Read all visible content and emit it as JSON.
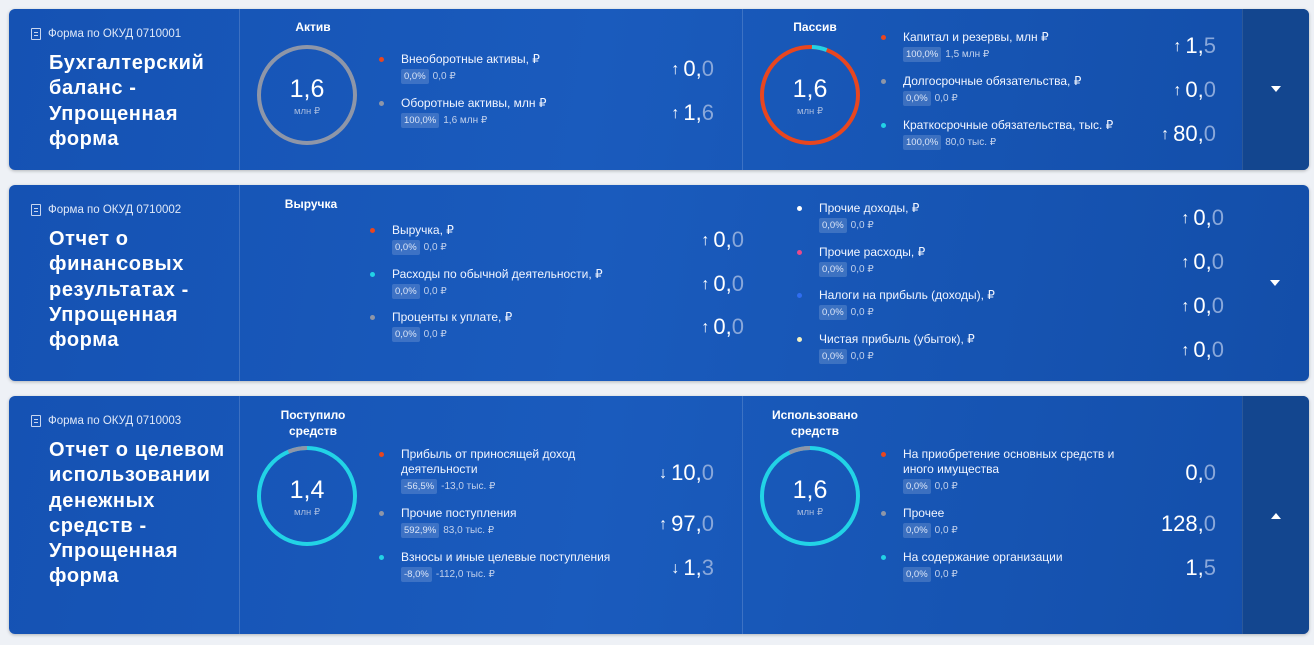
{
  "cards": [
    {
      "form_code": "Форма по ОКУД 0710001",
      "title": "Бухгалтерский баланс - Упрощенная форма",
      "sections": [
        {
          "title": "Актив",
          "ring": {
            "int": "1,6",
            "unit": "млн ₽",
            "color": "#8e96a8"
          },
          "items": [
            {
              "label": "Внеоборотные активы, ₽",
              "pct": "0,0%",
              "sub": "0,0 ₽",
              "arrow": "↑",
              "int": "0,",
              "dec": "0",
              "dot": "#e8461f"
            },
            {
              "label": "Оборотные активы, млн ₽",
              "pct": "100,0%",
              "sub": "1,6 млн ₽",
              "arrow": "↑",
              "int": "1,",
              "dec": "6",
              "dot": "#8e96a8"
            }
          ]
        },
        {
          "title": "Пассив",
          "ring": {
            "int": "1,6",
            "unit": "млн ₽",
            "color": "#e8461f"
          },
          "items": [
            {
              "label": "Капитал и резервы, млн ₽",
              "pct": "100,0%",
              "sub": "1,5 млн ₽",
              "arrow": "↑",
              "int": "1,",
              "dec": "5",
              "dot": "#e8461f"
            },
            {
              "label": "Долгосрочные обязательства, ₽",
              "pct": "0,0%",
              "sub": "0,0 ₽",
              "arrow": "↑",
              "int": "0,",
              "dec": "0",
              "dot": "#8e96a8"
            },
            {
              "label": "Краткосрочные обязательства, тыс. ₽",
              "pct": "100,0%",
              "sub": "80,0 тыс. ₽",
              "arrow": "↑",
              "int": "80,",
              "dec": "0",
              "dot": "#22d3e6"
            }
          ]
        }
      ]
    },
    {
      "form_code": "Форма по ОКУД 0710002",
      "title": "Отчет о финансовых результатах - Упрощенная форма",
      "sections": [
        {
          "title": "Выручка",
          "items": [
            {
              "label": "Выручка, ₽",
              "pct": "0,0%",
              "sub": "0,0 ₽",
              "arrow": "↑",
              "int": "0,",
              "dec": "0",
              "dot": "#e8461f"
            },
            {
              "label": "Расходы по обычной деятельности, ₽",
              "pct": "0,0%",
              "sub": "0,0 ₽",
              "arrow": "↑",
              "int": "0,",
              "dec": "0",
              "dot": "#22d3e6"
            },
            {
              "label": "Проценты к уплате, ₽",
              "pct": "0,0%",
              "sub": "0,0 ₽",
              "arrow": "↑",
              "int": "0,",
              "dec": "0",
              "dot": "#8e96a8"
            }
          ]
        },
        {
          "items": [
            {
              "label": "Прочие доходы, ₽",
              "pct": "0,0%",
              "sub": "0,0 ₽",
              "arrow": "↑",
              "int": "0,",
              "dec": "0",
              "dot": "#ffffff"
            },
            {
              "label": "Прочие расходы, ₽",
              "pct": "0,0%",
              "sub": "0,0 ₽",
              "arrow": "↑",
              "int": "0,",
              "dec": "0",
              "dot": "#e84a8a"
            },
            {
              "label": "Налоги на прибыль (доходы), ₽",
              "pct": "0,0%",
              "sub": "0,0 ₽",
              "arrow": "↑",
              "int": "0,",
              "dec": "0",
              "dot": "#2f6df0"
            },
            {
              "label": "Чистая прибыль (убыток), ₽",
              "pct": "0,0%",
              "sub": "0,0 ₽",
              "arrow": "↑",
              "int": "0,",
              "dec": "0",
              "dot": "#f3f0c0"
            }
          ]
        }
      ]
    },
    {
      "form_code": "Форма по ОКУД 0710003",
      "title": "Отчет о целевом использовании денежных средств - Упрощенная форма",
      "sections": [
        {
          "title": "Поступило средств",
          "ring": {
            "int": "1,4",
            "unit": "млн ₽",
            "color": "#22d3e6"
          },
          "items": [
            {
              "label": "Прибыль от приносящей доход деятельности",
              "pct": "-56,5%",
              "sub": "-13,0 тыс. ₽",
              "arrow": "↓",
              "int": "10,",
              "dec": "0",
              "dot": "#e8461f"
            },
            {
              "label": "Прочие поступления",
              "pct": "592,9%",
              "sub": "83,0 тыс. ₽",
              "arrow": "↑",
              "int": "97,",
              "dec": "0",
              "dot": "#8e96a8"
            },
            {
              "label": "Взносы и иные целевые поступления",
              "pct": "-8,0%",
              "sub": "-112,0 тыс. ₽",
              "arrow": "↓",
              "int": "1,",
              "dec": "3",
              "dot": "#22d3e6"
            }
          ]
        },
        {
          "title": "Использовано средств",
          "ring": {
            "int": "1,6",
            "unit": "млн ₽",
            "color": "#22d3e6"
          },
          "items": [
            {
              "label": "На приобретение основных средств и иного имущества",
              "pct": "0,0%",
              "sub": "0,0 ₽",
              "arrow": "",
              "int": "0,",
              "dec": "0",
              "dot": "#e8461f"
            },
            {
              "label": "Прочее",
              "pct": "0,0%",
              "sub": "0,0 ₽",
              "arrow": "",
              "int": "128,",
              "dec": "0",
              "dot": "#8e96a8"
            },
            {
              "label": "На содержание организации",
              "pct": "0,0%",
              "sub": "0,0 ₽",
              "arrow": "",
              "int": "1,",
              "dec": "5",
              "dot": "#22d3e6"
            }
          ]
        }
      ]
    }
  ]
}
